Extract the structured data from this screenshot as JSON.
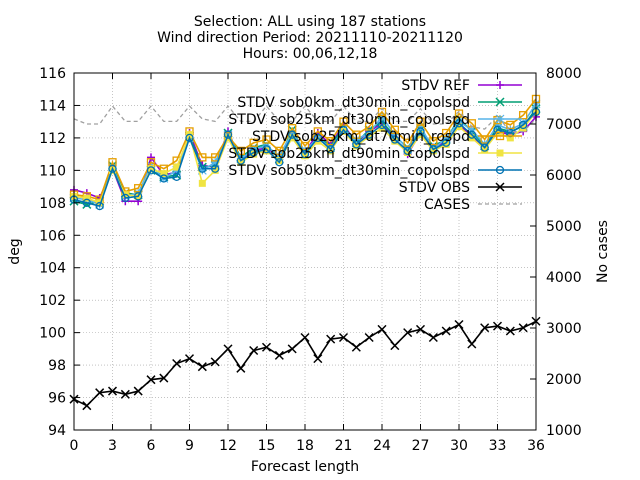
{
  "chart_data": {
    "type": "line",
    "title_lines": [
      "Selection: ALL using   187 stations",
      "Wind direction   Period: 20211110-20211120",
      "Hours: 00,06,12,18"
    ],
    "xlabel": "Forecast length",
    "ylabel": "deg",
    "y2label": "No cases",
    "xlim": [
      0,
      36
    ],
    "ylim": [
      94,
      116
    ],
    "y2lim": [
      1000,
      8000
    ],
    "xticks": [
      0,
      3,
      6,
      9,
      12,
      15,
      18,
      21,
      24,
      27,
      30,
      33,
      36
    ],
    "yticks": [
      94,
      96,
      98,
      100,
      102,
      104,
      106,
      108,
      110,
      112,
      114,
      116
    ],
    "y2ticks": [
      1000,
      2000,
      3000,
      4000,
      5000,
      6000,
      7000,
      8000
    ],
    "grid": true,
    "legend_position": "top-right",
    "x": [
      0,
      1,
      2,
      3,
      4,
      5,
      6,
      7,
      8,
      9,
      10,
      11,
      12,
      13,
      14,
      15,
      16,
      17,
      18,
      19,
      20,
      21,
      22,
      23,
      24,
      25,
      26,
      27,
      28,
      29,
      30,
      31,
      32,
      33,
      34,
      35,
      36
    ],
    "series": [
      {
        "name": "STDV REF",
        "color": "#9400d3",
        "marker": "plus",
        "axis": "y",
        "values": [
          108.8,
          108.6,
          108.3,
          110.1,
          108.1,
          108.1,
          110.8,
          109.7,
          109.9,
          112.3,
          110.3,
          110.2,
          112.4,
          110.6,
          111.2,
          111.4,
          110.8,
          112.2,
          111.1,
          112.3,
          111.6,
          112.8,
          111.7,
          112.4,
          112.9,
          112.0,
          111.0,
          112.3,
          111.4,
          111.8,
          112.8,
          112.1,
          111.4,
          112.4,
          112.2,
          112.4,
          113.3
        ]
      },
      {
        "name": "STDV sob0km_dt30min_copolspd",
        "color": "#009e73",
        "marker": "cross",
        "axis": "y",
        "values": [
          108.1,
          107.9,
          108.1,
          110.3,
          108.6,
          108.5,
          110.0,
          109.6,
          109.7,
          112.1,
          110.2,
          110.3,
          112.3,
          110.8,
          111.4,
          111.6,
          110.7,
          112.5,
          111.0,
          112.1,
          111.5,
          112.7,
          111.7,
          112.5,
          113.0,
          112.1,
          111.4,
          112.5,
          111.5,
          111.9,
          113.2,
          112.4,
          111.5,
          112.6,
          112.4,
          112.7,
          113.8
        ]
      },
      {
        "name": "STDV sob25km_dt30min_copolspd",
        "color": "#56b4e9",
        "marker": "star",
        "axis": "y",
        "values": [
          108.3,
          108.2,
          107.9,
          110.2,
          108.4,
          108.6,
          110.3,
          109.5,
          110.0,
          112.0,
          110.0,
          110.5,
          112.2,
          110.7,
          111.3,
          111.5,
          110.9,
          112.3,
          111.2,
          112.0,
          111.4,
          112.5,
          111.9,
          112.3,
          113.3,
          112.2,
          111.3,
          112.7,
          111.3,
          112.0,
          113.0,
          112.5,
          111.6,
          112.8,
          112.5,
          112.9,
          114.1
        ]
      },
      {
        "name": "STDV sob25km_dt70min_rospd",
        "color": "#e69f00",
        "marker": "box",
        "axis": "y",
        "values": [
          108.5,
          108.4,
          108.2,
          110.5,
          108.7,
          108.9,
          110.5,
          110.1,
          110.6,
          112.4,
          110.8,
          110.8,
          112.1,
          111.2,
          111.7,
          111.9,
          111.2,
          112.6,
          111.5,
          112.4,
          111.8,
          113.0,
          112.2,
          112.7,
          113.6,
          112.5,
          111.7,
          113.0,
          111.8,
          112.3,
          113.5,
          112.9,
          111.9,
          113.1,
          112.8,
          113.4,
          114.4
        ]
      },
      {
        "name": "STDV sob25km_dt90min_copolspd",
        "color": "#f0e442",
        "marker": "filled-box",
        "axis": "y",
        "values": [
          108.4,
          108.3,
          108.0,
          110.0,
          108.5,
          108.4,
          110.1,
          109.8,
          110.2,
          112.2,
          109.2,
          110.0,
          112.0,
          110.5,
          111.0,
          111.2,
          110.6,
          112.0,
          110.9,
          111.8,
          111.2,
          112.4,
          111.5,
          112.1,
          112.6,
          111.8,
          111.1,
          112.2,
          111.2,
          111.6,
          112.7,
          112.0,
          111.3,
          112.3,
          112.0,
          112.6,
          113.6
        ]
      },
      {
        "name": "STDV sob50km_dt30min_copolspd",
        "color": "#0072b2",
        "marker": "circle",
        "axis": "y",
        "values": [
          108.2,
          108.0,
          107.8,
          110.1,
          108.3,
          108.4,
          110.0,
          109.5,
          109.6,
          112.0,
          110.1,
          110.1,
          112.2,
          110.6,
          111.1,
          111.3,
          110.5,
          112.2,
          111.0,
          112.0,
          111.3,
          112.5,
          111.6,
          112.2,
          112.8,
          111.9,
          111.2,
          112.4,
          111.3,
          111.7,
          112.9,
          112.2,
          111.4,
          112.5,
          112.3,
          112.8,
          113.6
        ]
      },
      {
        "name": "STDV OBS",
        "color": "#000000",
        "marker": "cross",
        "axis": "y",
        "values": [
          95.9,
          95.5,
          96.3,
          96.4,
          96.2,
          96.4,
          97.1,
          97.2,
          98.1,
          98.4,
          97.9,
          98.2,
          99.0,
          97.8,
          98.9,
          99.1,
          98.6,
          99.0,
          99.7,
          98.4,
          99.6,
          99.7,
          99.1,
          99.7,
          100.2,
          99.2,
          100.0,
          100.2,
          99.7,
          100.1,
          100.5,
          99.3,
          100.3,
          100.4,
          100.1,
          100.3,
          100.7
        ]
      },
      {
        "name": "CASES",
        "color": "#a0a0a0",
        "marker": "none",
        "dash": true,
        "axis": "y2",
        "values": [
          7100,
          7000,
          7000,
          7350,
          7050,
          7050,
          7350,
          7050,
          7050,
          7350,
          7100,
          7050,
          7350,
          7050,
          7050,
          7350,
          7050,
          7050,
          7350,
          7050,
          7050,
          7350,
          7050,
          7050,
          7300,
          7050,
          7050,
          7300,
          7000,
          7000,
          7250,
          6950,
          6900,
          7150,
          6850,
          6850,
          7100
        ]
      }
    ]
  }
}
